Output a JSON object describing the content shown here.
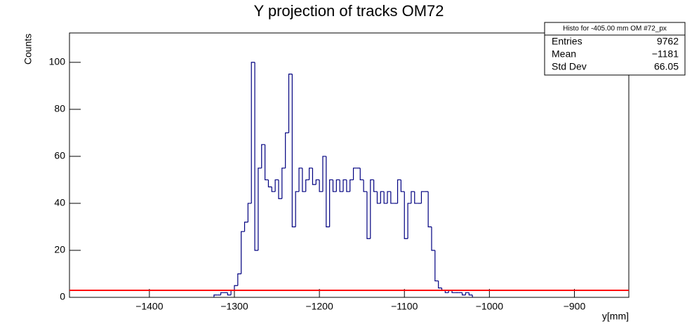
{
  "chart_data": {
    "type": "histogram",
    "title": "Y projection of tracks OM72",
    "x_label": "y[mm]",
    "y_label": "Counts",
    "xlim": [
      -1494,
      -836
    ],
    "ylim": [
      0,
      112.5
    ],
    "xticks": [
      {
        "value": -1400,
        "label": "−1400"
      },
      {
        "value": -1300,
        "label": "−1300"
      },
      {
        "value": -1200,
        "label": "−1200"
      },
      {
        "value": -1100,
        "label": "−1100"
      },
      {
        "value": -1000,
        "label": "−1000"
      },
      {
        "value": -900,
        "label": "−900"
      }
    ],
    "yticks": [
      0,
      20,
      40,
      60,
      80,
      100
    ],
    "color": "#000080",
    "bins": [
      -1324,
      -1320,
      -1316,
      -1312,
      -1308,
      -1304,
      -1300,
      -1296,
      -1292,
      -1288,
      -1284,
      -1280,
      -1276,
      -1272,
      -1268,
      -1264,
      -1260,
      -1256,
      -1252,
      -1248,
      -1244,
      -1240,
      -1236,
      -1232,
      -1228,
      -1224,
      -1220,
      -1216,
      -1212,
      -1208,
      -1204,
      -1200,
      -1196,
      -1192,
      -1188,
      -1184,
      -1180,
      -1176,
      -1172,
      -1168,
      -1164,
      -1160,
      -1156,
      -1152,
      -1148,
      -1144,
      -1140,
      -1136,
      -1132,
      -1128,
      -1124,
      -1120,
      -1116,
      -1112,
      -1108,
      -1104,
      -1100,
      -1096,
      -1092,
      -1088,
      -1084,
      -1080,
      -1076,
      -1072,
      -1068,
      -1064,
      -1060,
      -1056,
      -1052,
      -1048,
      -1044,
      -1040,
      -1036,
      -1032,
      -1028,
      -1024,
      -1020
    ],
    "values": [
      1,
      1,
      2,
      2,
      1,
      3,
      5,
      10,
      28,
      32,
      40,
      100,
      20,
      55,
      65,
      50,
      47,
      45,
      50,
      42,
      55,
      70,
      95,
      30,
      45,
      55,
      45,
      50,
      55,
      48,
      50,
      45,
      60,
      30,
      50,
      45,
      50,
      45,
      50,
      45,
      50,
      55,
      55,
      50,
      45,
      25,
      50,
      45,
      40,
      45,
      40,
      45,
      40,
      40,
      50,
      45,
      25,
      40,
      45,
      40,
      40,
      45,
      45,
      30,
      20,
      7,
      4,
      3,
      2,
      3,
      2,
      2,
      2,
      1,
      2,
      1
    ],
    "fit_line": {
      "value": 3,
      "color": "#ff0000"
    },
    "stats": {
      "title": "Histo for -405.00 mm OM #72_px",
      "rows": [
        {
          "label": "Entries",
          "value": "9762"
        },
        {
          "label": "Mean",
          "value": "−1181"
        },
        {
          "label": "Std Dev",
          "value": "66.05"
        }
      ]
    }
  }
}
